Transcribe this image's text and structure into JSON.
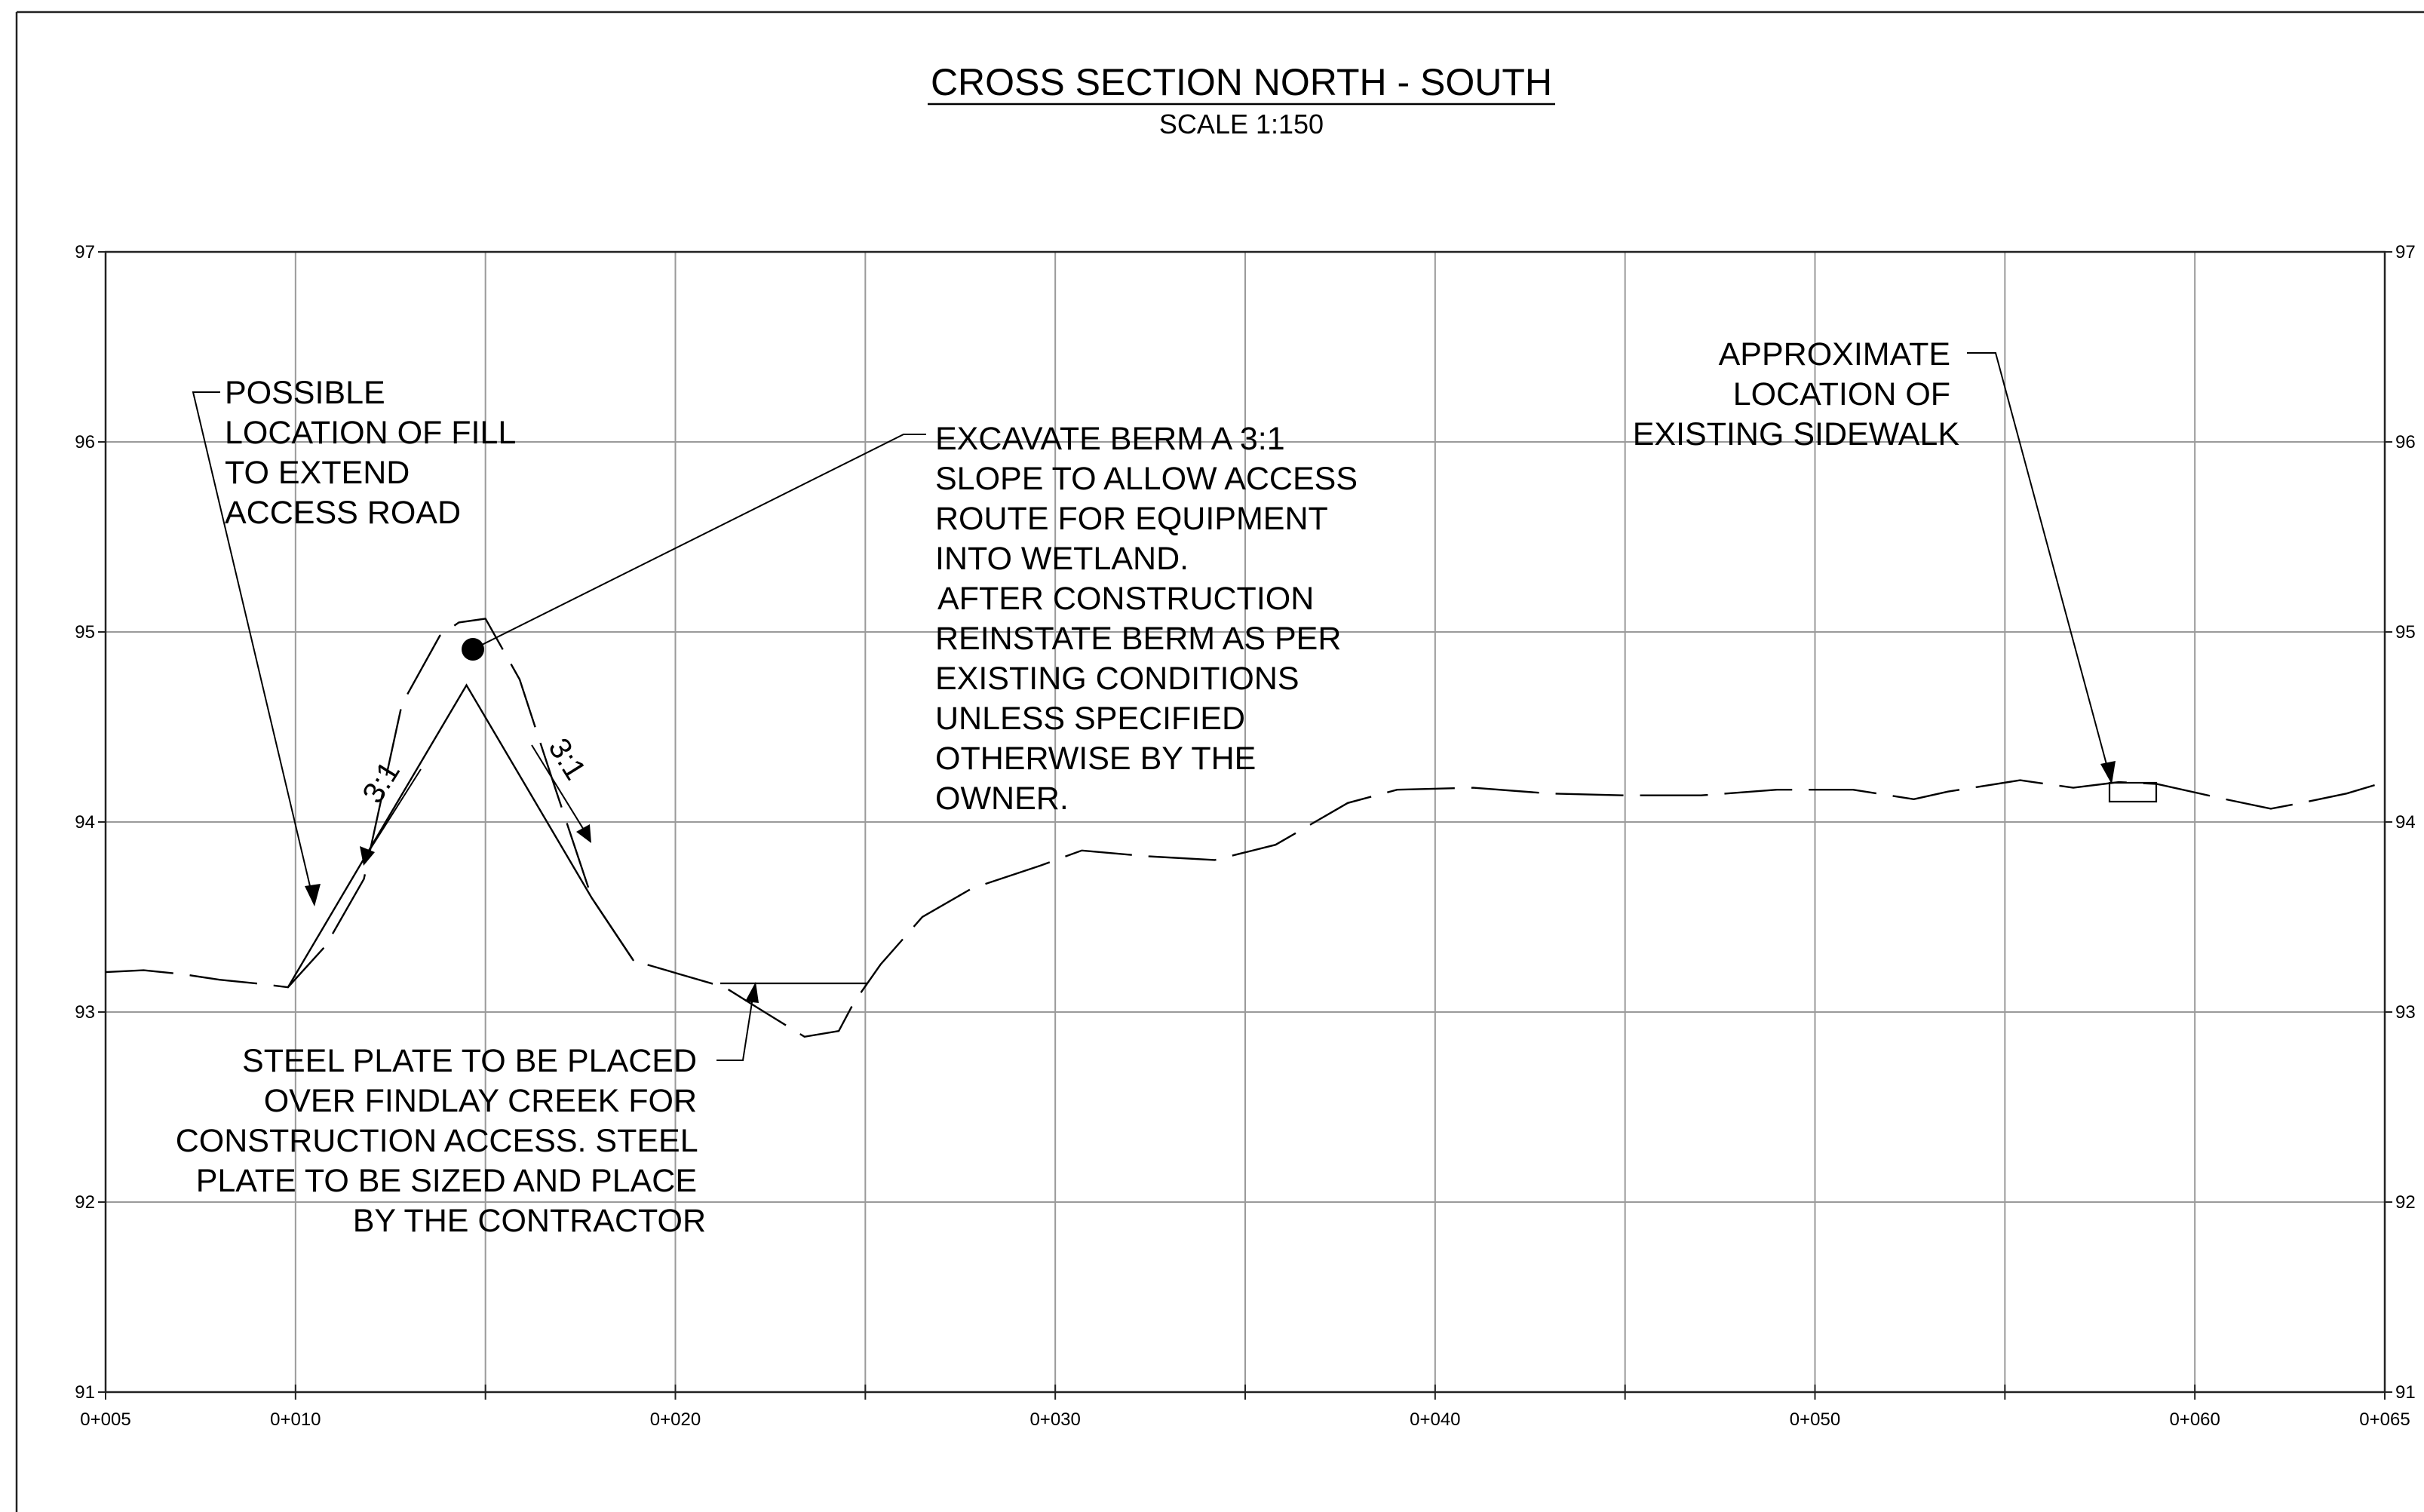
{
  "title": "CROSS SECTION NORTH - SOUTH",
  "subtitle": "SCALE 1:150",
  "y_axis": {
    "labels": [
      "97",
      "96",
      "95",
      "94",
      "93",
      "92",
      "91"
    ]
  },
  "x_axis": {
    "labels": [
      "0+005",
      "0+010",
      "0+020",
      "0+030",
      "0+040",
      "0+050",
      "0+060",
      "0+065"
    ]
  },
  "slopes": {
    "left": "3:1",
    "right": "3:1"
  },
  "notes": {
    "fill": [
      "POSSIBLE",
      "LOCATION OF FILL",
      "TO EXTEND",
      "ACCESS ROAD"
    ],
    "berm": [
      "EXCAVATE BERM A 3:1",
      "SLOPE TO ALLOW ACCESS",
      "ROUTE FOR EQUIPMENT",
      "INTO WETLAND.",
      "AFTER CONSTRUCTION",
      "REINSTATE BERM AS PER",
      "EXISTING CONDITIONS",
      "UNLESS SPECIFIED",
      "OTHERWISE BY THE",
      "OWNER."
    ],
    "sidewalk": [
      "APPROXIMATE",
      "LOCATION OF",
      "EXISTING SIDEWALK"
    ],
    "steel": [
      "STEEL PLATE TO BE PLACED",
      "OVER FINDLAY CREEK FOR",
      "CONSTRUCTION ACCESS. STEEL",
      "PLATE TO BE SIZED AND PLACE",
      "BY THE CONTRACTOR"
    ]
  },
  "chart_data": {
    "type": "line",
    "title": "CROSS SECTION NORTH - SOUTH",
    "subtitle": "SCALE 1:150",
    "xlim": [
      5,
      65
    ],
    "ylim": [
      91,
      97
    ],
    "grid": true,
    "x_ticks": [
      5,
      10,
      20,
      30,
      40,
      50,
      60,
      65
    ],
    "y_ticks": [
      91,
      92,
      93,
      94,
      95,
      96,
      97
    ],
    "series": [
      {
        "name": "",
        "values_x": [
          5,
          6,
          7,
          8,
          9,
          9.8,
          10.8,
          11.8,
          12.8,
          13.8,
          14.3,
          15.0,
          15.9,
          16.8,
          17.8,
          18.9,
          20.1,
          21.3,
          22.1,
          23.4,
          24.3,
          24.7,
          25.4,
          26.5,
          27.8,
          29.6,
          30.7,
          32.4,
          34.2,
          35.8,
          37.7,
          39.0,
          41.0,
          43.0,
          45.0,
          47.0,
          49.0,
          51.0,
          52.6,
          53.5,
          55.4,
          56.8,
          58.0,
          59.0,
          60.8,
          62.0,
          62.8,
          64.0,
          65.0
        ],
        "values_y": [
          93.21,
          93.22,
          93.2,
          93.17,
          93.15,
          93.13,
          93.35,
          93.7,
          94.62,
          94.98,
          95.05,
          95.07,
          94.75,
          94.2,
          93.6,
          93.27,
          93.2,
          93.13,
          93.03,
          92.87,
          92.9,
          93.05,
          93.25,
          93.5,
          93.65,
          93.77,
          93.85,
          93.82,
          93.8,
          93.88,
          94.1,
          94.17,
          94.18,
          94.15,
          94.14,
          94.14,
          94.17,
          94.17,
          94.12,
          94.16,
          94.22,
          94.18,
          94.21,
          94.2,
          94.12,
          94.07,
          94.1,
          94.15,
          94.21
        ]
      },
      {
        "name": "",
        "values_x": [
          9.8,
          14.5,
          17.8,
          18.9
        ],
        "values_y": [
          93.13,
          94.72,
          93.6,
          93.27
        ]
      }
    ]
  }
}
